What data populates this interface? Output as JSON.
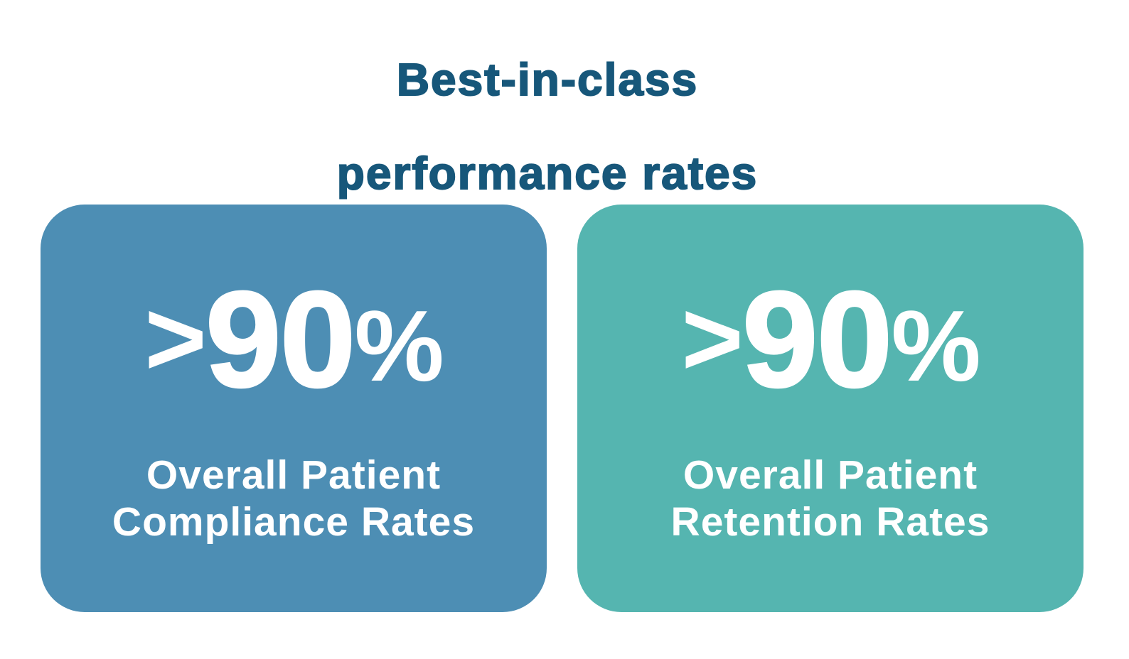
{
  "header": {
    "title_line1": "Best-in-class",
    "title_line2": "performance rates"
  },
  "cards": [
    {
      "stat_prefix": ">",
      "stat_value": "90",
      "stat_suffix": "%",
      "label_line1": "Overall Patient",
      "label_line2": "Compliance Rates",
      "color": "#4d8eb4"
    },
    {
      "stat_prefix": ">",
      "stat_value": "90",
      "stat_suffix": "%",
      "label_line1": "Overall Patient",
      "label_line2": "Retention Rates",
      "color": "#55b5b0"
    }
  ],
  "colors": {
    "heading": "#17577a",
    "background": "#ffffff",
    "card_text": "#ffffff"
  }
}
